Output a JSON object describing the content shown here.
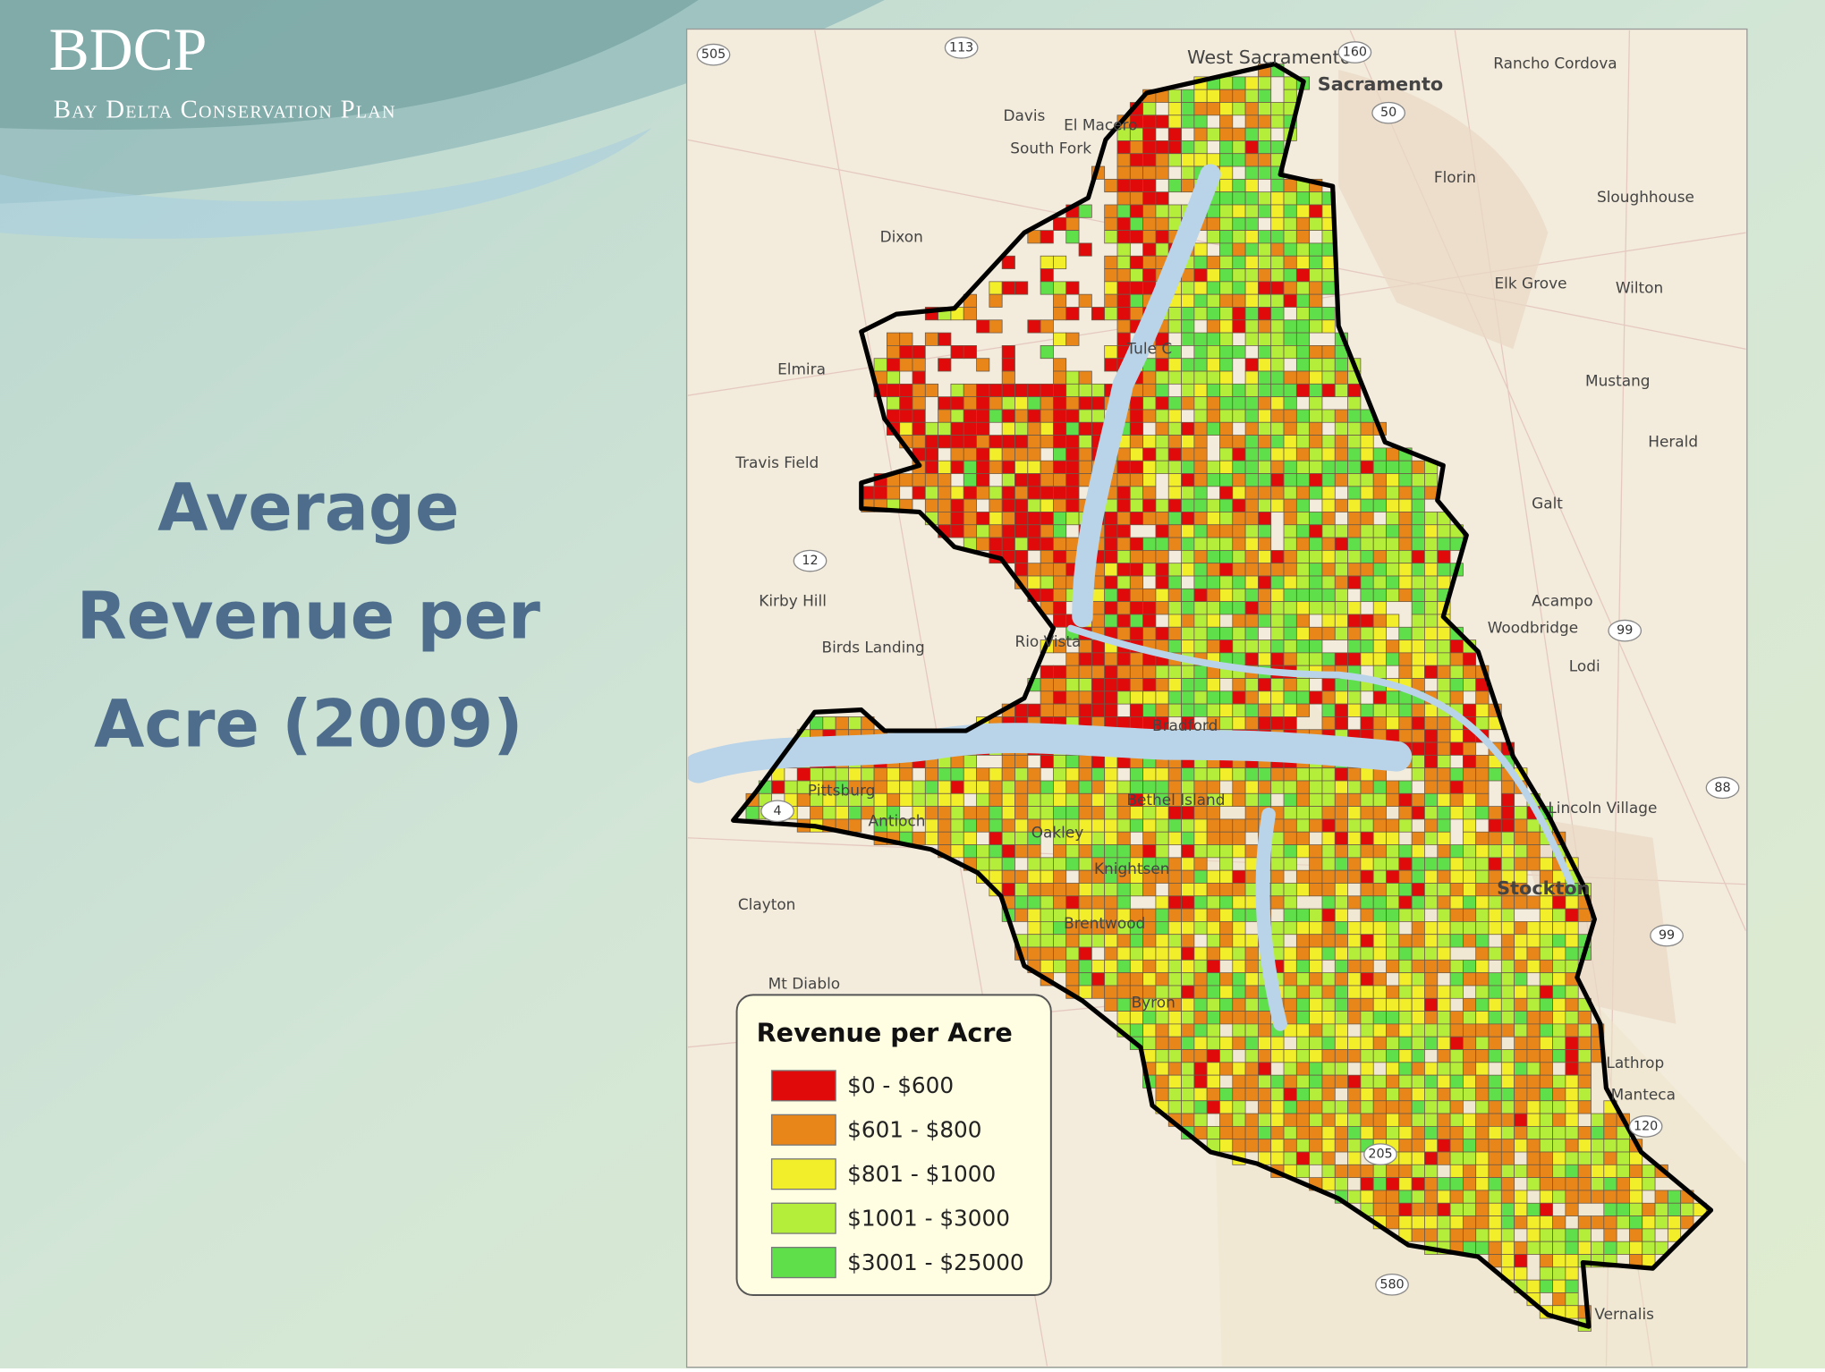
{
  "header": {
    "logo": "BDCP",
    "subtitle": "Bay Delta Conservation Plan"
  },
  "slide_title": [
    "Average",
    "Revenue per",
    "Acre (2009)"
  ],
  "map": {
    "legend": {
      "title": "Revenue per Acre",
      "items": [
        {
          "label": "$0 - $600",
          "color": "#e00a0a"
        },
        {
          "label": "$601 - $800",
          "color": "#e8861a"
        },
        {
          "label": "$801 - $1000",
          "color": "#f2ee2a"
        },
        {
          "label": "$1001 - $3000",
          "color": "#b5ee3a"
        },
        {
          "label": "$3001 - $25000",
          "color": "#5fe04a"
        }
      ]
    },
    "places": [
      "Sacramento",
      "West Sacramento",
      "Davis",
      "El Macero",
      "Rancho Cordova",
      "Florin",
      "Sloughhouse",
      "Dixon",
      "Elk Grove",
      "Wilton",
      "Elmira",
      "Mustang",
      "Herald",
      "Travis Field",
      "Galt",
      "Kirby Hill",
      "Acampo",
      "Woodbridge",
      "Lodi",
      "Birds Landing",
      "Rio Vista",
      "Bradford",
      "Pittsburg",
      "Antioch",
      "Oakley",
      "Bethel Island",
      "Knightsen",
      "Lincoln Village",
      "Stockton",
      "Clayton",
      "Brentwood",
      "Mt Diablo",
      "Byron",
      "Lathrop",
      "Manteca",
      "Vernalis",
      "South Fork",
      "Tule C"
    ],
    "shields": [
      "505",
      "113",
      "160",
      "50",
      "12",
      "99",
      "4",
      "88",
      "99",
      "120",
      "205",
      "580"
    ]
  }
}
